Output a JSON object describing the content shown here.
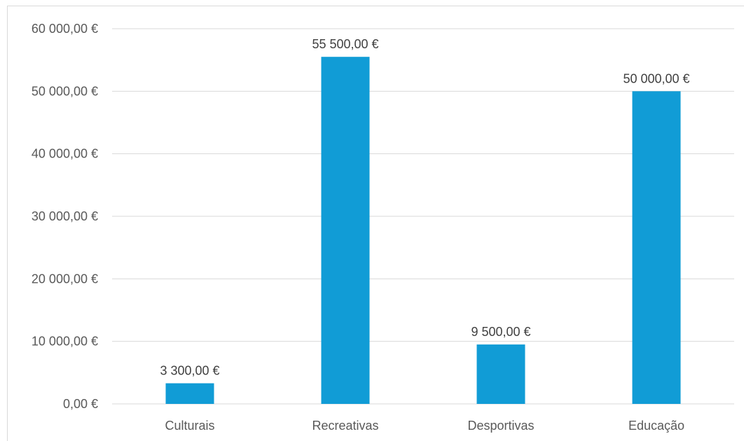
{
  "chart_data": {
    "type": "bar",
    "categories": [
      "Culturais",
      "Recreativas",
      "Desportivas",
      "Educação"
    ],
    "values": [
      3300,
      55500,
      9500,
      50000
    ],
    "value_labels": [
      "3 300,00 €",
      "55 500,00 €",
      "9 500,00 €",
      "50 000,00 €"
    ],
    "ylim": [
      0,
      60000
    ],
    "yticks": [
      0,
      10000,
      20000,
      30000,
      40000,
      50000,
      60000
    ],
    "ytick_labels": [
      "0,00 €",
      "10 000,00 €",
      "20 000,00 €",
      "30 000,00 €",
      "40 000,00 €",
      "50 000,00 €",
      "60 000,00 €"
    ],
    "title": "",
    "xlabel": "",
    "ylabel": "",
    "grid": "horizontal",
    "legend": "none",
    "bar_color": "#119cd6"
  }
}
